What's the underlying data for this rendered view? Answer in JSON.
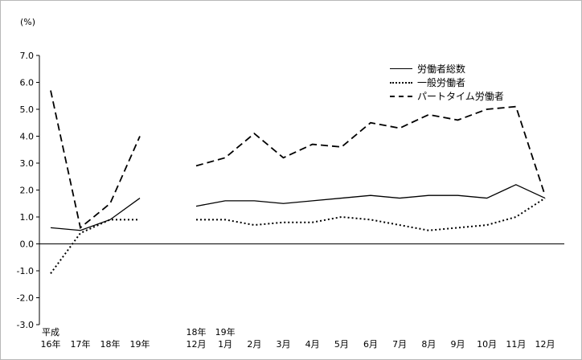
{
  "chart_data": {
    "type": "line",
    "unit_label": "(%)",
    "ylim": [
      -3.0,
      7.0
    ],
    "y_ticks": [
      7,
      6,
      5,
      4,
      3,
      2,
      1,
      0,
      -1,
      -2,
      -3
    ],
    "grid": false,
    "legend_position": "inside-top-right",
    "line_color": "#000000",
    "background_color": "#ffffff",
    "annual_categories": [
      {
        "top": "平成",
        "bottom": "16年"
      },
      {
        "top": "",
        "bottom": "17年"
      },
      {
        "top": "",
        "bottom": "18年"
      },
      {
        "top": "",
        "bottom": "19年"
      }
    ],
    "monthly_categories": [
      {
        "top": "18年",
        "bottom": "12月"
      },
      {
        "top": "19年",
        "bottom": "1月"
      },
      {
        "top": "",
        "bottom": "2月"
      },
      {
        "top": "",
        "bottom": "3月"
      },
      {
        "top": "",
        "bottom": "4月"
      },
      {
        "top": "",
        "bottom": "5月"
      },
      {
        "top": "",
        "bottom": "6月"
      },
      {
        "top": "",
        "bottom": "7月"
      },
      {
        "top": "",
        "bottom": "8月"
      },
      {
        "top": "",
        "bottom": "9月"
      },
      {
        "top": "",
        "bottom": "10月"
      },
      {
        "top": "",
        "bottom": "11月"
      },
      {
        "top": "",
        "bottom": "12月"
      }
    ],
    "series": [
      {
        "id": "total-workers",
        "name": "労働者総数",
        "style": "solid",
        "annual": [
          0.6,
          0.5,
          0.9,
          1.7
        ],
        "monthly": [
          1.4,
          1.6,
          1.6,
          1.5,
          1.6,
          1.7,
          1.8,
          1.7,
          1.8,
          1.8,
          1.7,
          2.2,
          1.7
        ]
      },
      {
        "id": "general-workers",
        "name": "一般労働者",
        "style": "dotted",
        "annual": [
          -1.1,
          0.4,
          0.9,
          0.9
        ],
        "monthly": [
          0.9,
          0.9,
          0.7,
          0.8,
          0.8,
          1.0,
          0.9,
          0.7,
          0.5,
          0.6,
          0.7,
          1.0,
          1.7
        ]
      },
      {
        "id": "part-time-workers",
        "name": "パートタイム労働者",
        "style": "dashed",
        "annual": [
          5.7,
          0.6,
          1.5,
          4.0
        ],
        "monthly": [
          2.9,
          3.2,
          4.1,
          3.2,
          3.7,
          3.6,
          4.5,
          4.3,
          4.8,
          4.6,
          5.0,
          5.1,
          1.8
        ]
      }
    ]
  }
}
